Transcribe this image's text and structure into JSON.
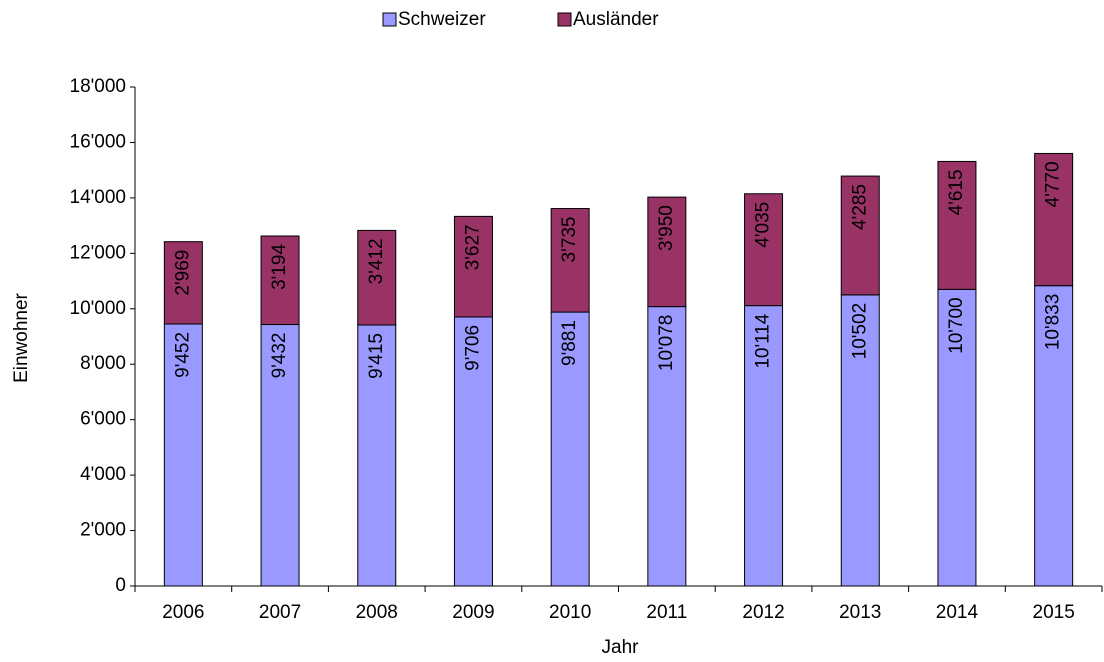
{
  "chart_data": {
    "type": "stacked_bar",
    "x_label": "Jahr",
    "y_label": "Einwohner",
    "categories": [
      "2006",
      "2007",
      "2008",
      "2009",
      "2010",
      "2011",
      "2012",
      "2013",
      "2014",
      "2015"
    ],
    "series": [
      {
        "name": "Schweizer",
        "color": "#9999ff",
        "values": [
          9452,
          9432,
          9415,
          9706,
          9881,
          10078,
          10114,
          10502,
          10700,
          10833
        ],
        "value_labels": [
          "9'452",
          "9'432",
          "9'415",
          "9'706",
          "9'881",
          "10'078",
          "10'114",
          "10'502",
          "10'700",
          "10'833"
        ]
      },
      {
        "name": "Ausländer",
        "color": "#993366",
        "values": [
          2969,
          3194,
          3412,
          3627,
          3735,
          3950,
          4035,
          4285,
          4615,
          4770
        ],
        "value_labels": [
          "2'969",
          "3'194",
          "3'412",
          "3'627",
          "3'735",
          "3'950",
          "4'035",
          "4'285",
          "4'615",
          "4'770"
        ]
      }
    ],
    "ylim": [
      0,
      18000
    ],
    "yticks": [
      0,
      {
        "value": 2000,
        "label": "2'000"
      },
      {
        "value": 4000,
        "label": "4'000"
      },
      {
        "value": 6000,
        "label": "6'000"
      },
      {
        "value": 8000,
        "label": "8'000"
      },
      {
        "value": 10000,
        "label": "10'000"
      },
      {
        "value": 12000,
        "label": "12'000"
      },
      {
        "value": 14000,
        "label": "14'000"
      },
      {
        "value": 16000,
        "label": "16'000"
      },
      {
        "value": 18000,
        "label": "18'000"
      }
    ],
    "grid": false,
    "legend": "top"
  }
}
